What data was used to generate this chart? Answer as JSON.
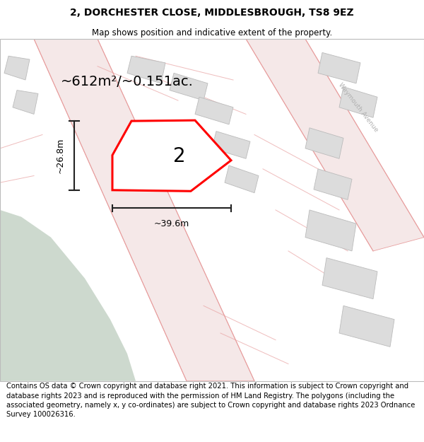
{
  "title": "2, DORCHESTER CLOSE, MIDDLESBROUGH, TS8 9EZ",
  "subtitle": "Map shows position and indicative extent of the property.",
  "area_label": "~612m²/~0.151ac.",
  "property_number": "2",
  "width_label": "~39.6m",
  "height_label": "~26.8m",
  "footer": "Contains OS data © Crown copyright and database right 2021. This information is subject to Crown copyright and database rights 2023 and is reproduced with the permission of HM Land Registry. The polygons (including the associated geometry, namely x, y co-ordinates) are subject to Crown copyright and database rights 2023 Ordnance Survey 100026316.",
  "map_bg": "#f2f2f2",
  "green_color": "#cdd9ce",
  "road_fill": "#f5e8e8",
  "road_line": "#e8a0a0",
  "build_fill": "#dcdcdc",
  "build_line": "#bbbbbb",
  "prop_fill": "#ffffff",
  "prop_line": "#ff0000",
  "title_fontsize": 10,
  "subtitle_fontsize": 8.5,
  "footer_fontsize": 7.2,
  "area_fontsize": 14,
  "dim_fontsize": 9,
  "num_fontsize": 20
}
